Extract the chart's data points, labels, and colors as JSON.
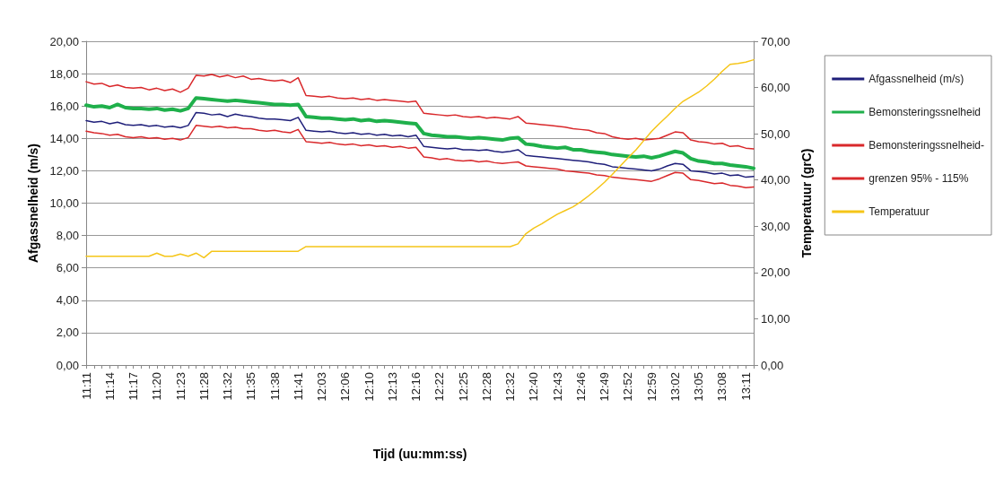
{
  "chart_data": {
    "type": "line",
    "xlabel": "Tijd (uu:mm:ss)",
    "ylabel": "Afgassnelheid (m/s)",
    "y2label": "Temperatuur (grC)",
    "categories": [
      "11:11",
      null,
      null,
      "11:14",
      null,
      null,
      "11:17",
      null,
      null,
      "11:20",
      null,
      null,
      "11:23",
      null,
      null,
      "11:28",
      null,
      null,
      "11:32",
      null,
      null,
      "11:35",
      null,
      null,
      "11:38",
      null,
      null,
      "11:41",
      null,
      null,
      "12:03",
      null,
      null,
      "12:06",
      null,
      null,
      "12:10",
      null,
      null,
      "12:13",
      null,
      null,
      "12:16",
      null,
      null,
      "12:22",
      null,
      null,
      "12:25",
      null,
      null,
      "12:28",
      null,
      null,
      "12:32",
      null,
      null,
      "12:40",
      null,
      null,
      "12:43",
      null,
      null,
      "12:46",
      null,
      null,
      "12:49",
      null,
      null,
      "12:52",
      null,
      null,
      "12:59",
      null,
      null,
      "13:02",
      null,
      null,
      "13:05",
      null,
      null,
      "13:08",
      null,
      null,
      "13:11",
      null
    ],
    "series": [
      {
        "name": "Afgassnelheid (m/s)",
        "color": "#1f1f7a",
        "values": [
          15.1,
          15.0,
          15.05,
          14.9,
          15.0,
          14.85,
          14.8,
          14.85,
          14.75,
          14.8,
          14.7,
          14.75,
          14.65,
          14.8,
          15.6,
          15.55,
          15.45,
          15.5,
          15.35,
          15.5,
          15.4,
          15.35,
          15.25,
          15.2,
          15.2,
          15.15,
          15.1,
          15.3,
          14.5,
          14.45,
          14.4,
          14.45,
          14.35,
          14.3,
          14.35,
          14.25,
          14.3,
          14.2,
          14.25,
          14.15,
          14.2,
          14.1,
          14.2,
          13.5,
          13.45,
          13.4,
          13.35,
          13.4,
          13.3,
          13.3,
          13.25,
          13.3,
          13.2,
          13.15,
          13.2,
          13.3,
          12.95,
          12.9,
          12.85,
          12.8,
          12.75,
          12.7,
          12.65,
          12.6,
          12.55,
          12.45,
          12.4,
          12.25,
          12.2,
          12.15,
          12.1,
          12.05,
          12.0,
          12.1,
          12.3,
          12.45,
          12.4,
          12.0,
          11.95,
          11.9,
          11.8,
          11.85,
          11.7,
          11.75,
          11.6,
          11.65
        ]
      },
      {
        "name": "Bemonsteringssnelheid",
        "color": "#1fb04b",
        "values": [
          16.05,
          15.95,
          16.0,
          15.9,
          16.1,
          15.9,
          15.85,
          15.85,
          15.8,
          15.85,
          15.75,
          15.8,
          15.7,
          15.85,
          16.5,
          16.45,
          16.4,
          16.35,
          16.3,
          16.35,
          16.3,
          16.25,
          16.2,
          16.15,
          16.1,
          16.1,
          16.05,
          16.1,
          15.35,
          15.3,
          15.25,
          15.25,
          15.2,
          15.15,
          15.2,
          15.1,
          15.15,
          15.05,
          15.1,
          15.05,
          15.0,
          14.95,
          14.9,
          14.3,
          14.2,
          14.15,
          14.1,
          14.1,
          14.05,
          14.0,
          14.05,
          14.0,
          13.95,
          13.9,
          14.0,
          14.05,
          13.65,
          13.6,
          13.5,
          13.45,
          13.4,
          13.45,
          13.3,
          13.3,
          13.2,
          13.15,
          13.1,
          13.0,
          12.95,
          12.9,
          12.85,
          12.9,
          12.8,
          12.9,
          13.05,
          13.2,
          13.1,
          12.75,
          12.6,
          12.55,
          12.45,
          12.45,
          12.35,
          12.3,
          12.25,
          12.15
        ]
      },
      {
        "name": "Bemonsteringssnelheid-",
        "color": "#d9282b",
        "values": [
          17.5,
          17.35,
          17.4,
          17.2,
          17.3,
          17.15,
          17.1,
          17.15,
          17.0,
          17.1,
          16.95,
          17.05,
          16.85,
          17.1,
          17.9,
          17.85,
          17.95,
          17.8,
          17.9,
          17.75,
          17.85,
          17.65,
          17.7,
          17.6,
          17.55,
          17.6,
          17.45,
          17.75,
          16.65,
          16.6,
          16.55,
          16.6,
          16.5,
          16.45,
          16.5,
          16.4,
          16.45,
          16.35,
          16.4,
          16.35,
          16.3,
          16.25,
          16.3,
          15.55,
          15.5,
          15.45,
          15.4,
          15.45,
          15.35,
          15.3,
          15.35,
          15.25,
          15.3,
          15.25,
          15.2,
          15.35,
          14.95,
          14.9,
          14.85,
          14.8,
          14.75,
          14.7,
          14.6,
          14.55,
          14.5,
          14.35,
          14.3,
          14.1,
          14.0,
          13.95,
          14.0,
          13.9,
          13.95,
          14.0,
          14.2,
          14.4,
          14.35,
          13.9,
          13.8,
          13.75,
          13.65,
          13.7,
          13.5,
          13.55,
          13.4,
          13.35
        ]
      },
      {
        "name": "grenzen 95% - 115%",
        "color": "#d9282b",
        "values": [
          14.45,
          14.35,
          14.3,
          14.2,
          14.25,
          14.1,
          14.05,
          14.1,
          14.0,
          14.05,
          13.95,
          14.0,
          13.9,
          14.05,
          14.8,
          14.75,
          14.7,
          14.75,
          14.65,
          14.7,
          14.6,
          14.6,
          14.5,
          14.45,
          14.5,
          14.4,
          14.35,
          14.55,
          13.8,
          13.75,
          13.7,
          13.75,
          13.65,
          13.6,
          13.65,
          13.55,
          13.6,
          13.5,
          13.55,
          13.45,
          13.5,
          13.4,
          13.45,
          12.85,
          12.8,
          12.7,
          12.75,
          12.65,
          12.6,
          12.65,
          12.55,
          12.6,
          12.5,
          12.45,
          12.5,
          12.55,
          12.3,
          12.25,
          12.2,
          12.15,
          12.1,
          12.0,
          11.95,
          11.9,
          11.85,
          11.75,
          11.7,
          11.6,
          11.55,
          11.5,
          11.45,
          11.4,
          11.35,
          11.5,
          11.7,
          11.9,
          11.85,
          11.45,
          11.4,
          11.3,
          11.2,
          11.25,
          11.1,
          11.05,
          10.95,
          11.0
        ]
      },
      {
        "name": "Temperatuur",
        "color": "#f5c518",
        "axis": "y2",
        "values": [
          23.5,
          23.5,
          23.5,
          23.5,
          23.5,
          23.5,
          23.5,
          23.5,
          23.5,
          24.2,
          23.5,
          23.5,
          24.0,
          23.5,
          24.2,
          23.2,
          24.6,
          24.6,
          24.6,
          24.6,
          24.6,
          24.6,
          24.6,
          24.6,
          24.6,
          24.6,
          24.6,
          24.6,
          25.6,
          25.6,
          25.6,
          25.6,
          25.6,
          25.6,
          25.6,
          25.6,
          25.6,
          25.6,
          25.6,
          25.6,
          25.6,
          25.6,
          25.6,
          25.6,
          25.6,
          25.6,
          25.6,
          25.6,
          25.6,
          25.6,
          25.6,
          25.6,
          25.6,
          25.6,
          25.6,
          26.2,
          28.4,
          29.6,
          30.5,
          31.6,
          32.6,
          33.4,
          34.2,
          35.3,
          36.6,
          38.0,
          39.5,
          41.2,
          43.0,
          44.8,
          46.5,
          48.5,
          50.5,
          52.2,
          53.8,
          55.5,
          57.0,
          58.0,
          59.0,
          60.3,
          61.8,
          63.5,
          65.0,
          65.2,
          65.5,
          66.0
        ]
      }
    ],
    "ylim": [
      0,
      20
    ],
    "yticks": [
      {
        "value": 0,
        "label": "0,00"
      },
      {
        "value": 2,
        "label": "2,00"
      },
      {
        "value": 4,
        "label": "4,00"
      },
      {
        "value": 6,
        "label": "6,00"
      },
      {
        "value": 8,
        "label": "8,00"
      },
      {
        "value": 10,
        "label": "10,00"
      },
      {
        "value": 12,
        "label": "12,00"
      },
      {
        "value": 14,
        "label": "14,00"
      },
      {
        "value": 16,
        "label": "16,00"
      },
      {
        "value": 18,
        "label": "18,00"
      },
      {
        "value": 20,
        "label": "20,00"
      }
    ],
    "y2lim": [
      0,
      70
    ],
    "y2ticks": [
      {
        "value": 0,
        "label": "0,00"
      },
      {
        "value": 10,
        "label": "10,00"
      },
      {
        "value": 20,
        "label": "20,00"
      },
      {
        "value": 30,
        "label": "30,00"
      },
      {
        "value": 40,
        "label": "40,00"
      },
      {
        "value": 50,
        "label": "50,00"
      },
      {
        "value": 60,
        "label": "60,00"
      },
      {
        "value": 70,
        "label": "70,00"
      }
    ],
    "grid": "y",
    "legend": "right",
    "marker": "none",
    "line_style": "solid"
  }
}
